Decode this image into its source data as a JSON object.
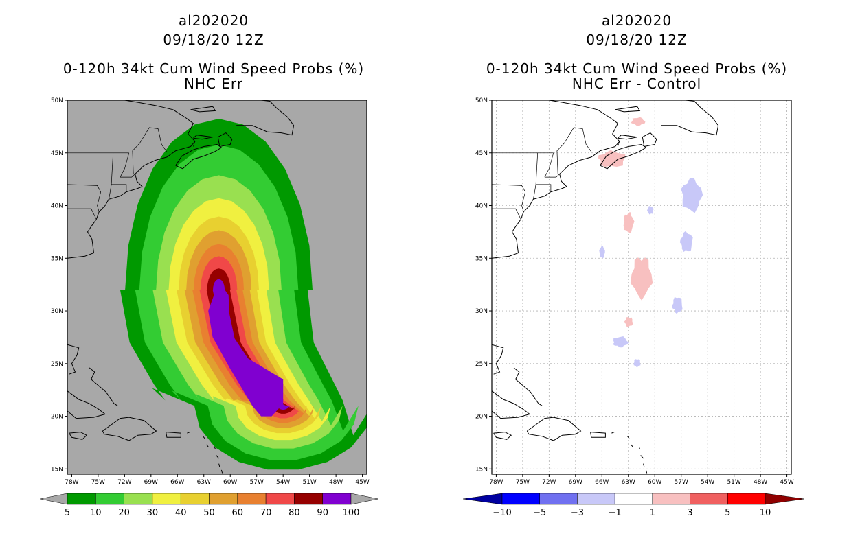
{
  "chart_data": [
    {
      "type": "heatmap",
      "panel": "left",
      "title_lines": [
        "al202020",
        "09/18/20 12Z",
        "0-120h 34kt Cum Wind Speed Probs (%)",
        "NHC Err"
      ],
      "lon_range": [
        -78.5,
        -44.5
      ],
      "lat_range": [
        14.5,
        50
      ],
      "x_ticks": [
        "78W",
        "75W",
        "72W",
        "69W",
        "66W",
        "63W",
        "60W",
        "57W",
        "54W",
        "51W",
        "48W",
        "45W"
      ],
      "x_tick_values": [
        -78,
        -75,
        -72,
        -69,
        -66,
        -63,
        -60,
        -57,
        -54,
        -51,
        -48,
        -45
      ],
      "y_ticks": [
        "15N",
        "20N",
        "25N",
        "30N",
        "35N",
        "40N",
        "45N",
        "50N"
      ],
      "y_tick_values": [
        15,
        20,
        25,
        30,
        35,
        40,
        45,
        50
      ],
      "grid": false,
      "background": "#a8a8a8",
      "levels": [
        5,
        10,
        20,
        30,
        40,
        50,
        60,
        70,
        80,
        90,
        100
      ],
      "level_labels": [
        "5",
        "10",
        "20",
        "30",
        "40",
        "50",
        "60",
        "70",
        "80",
        "90",
        "100"
      ],
      "colors": [
        "#009900",
        "#33cc33",
        "#99e050",
        "#f0f040",
        "#e8d030",
        "#e0a030",
        "#e88030",
        "#f04848",
        "#960000",
        "#8000d0"
      ],
      "track": {
        "points": [
          [
            -61.3,
            32
          ],
          [
            -60,
            27
          ],
          [
            -57,
            23
          ],
          [
            -55.5,
            21.5
          ],
          [
            -54,
            21
          ]
        ],
        "prob_by_level": [
          {
            "level": 5,
            "half_width": 11.2
          },
          {
            "level": 10,
            "half_width": 9.5
          },
          {
            "level": 20,
            "half_width": 7.5
          },
          {
            "level": 30,
            "half_width": 6
          },
          {
            "level": 40,
            "half_width": 4.8
          },
          {
            "level": 50,
            "half_width": 3.9
          },
          {
            "level": 60,
            "half_width": 3
          },
          {
            "level": 70,
            "half_width": 2.2
          },
          {
            "level": 80,
            "half_width": 1.4
          },
          {
            "level": 90,
            "half_width": 0.7
          }
        ]
      }
    },
    {
      "type": "heatmap",
      "panel": "right",
      "title_lines": [
        "al202020",
        "09/18/20 12Z",
        "0-120h 34kt Cum Wind Speed Probs (%)",
        "NHC Err - Control"
      ],
      "lon_range": [
        -78.5,
        -44.5
      ],
      "lat_range": [
        14.5,
        50
      ],
      "x_ticks": [
        "78W",
        "75W",
        "72W",
        "69W",
        "66W",
        "63W",
        "60W",
        "57W",
        "54W",
        "51W",
        "48W",
        "45W"
      ],
      "x_tick_values": [
        -78,
        -75,
        -72,
        -69,
        -66,
        -63,
        -60,
        -57,
        -54,
        -51,
        -48,
        -45
      ],
      "y_ticks": [
        "15N",
        "20N",
        "25N",
        "30N",
        "35N",
        "40N",
        "45N",
        "50N"
      ],
      "y_tick_values": [
        15,
        20,
        25,
        30,
        35,
        40,
        45,
        50
      ],
      "grid": true,
      "background": "#ffffff",
      "levels": [
        -10,
        -5,
        -3,
        -1,
        1,
        3,
        5,
        10
      ],
      "level_labels": [
        "-10",
        "-5",
        "-3",
        "-1",
        "1",
        "3",
        "5",
        "10"
      ],
      "colors": [
        "#0000a0",
        "#0000ff",
        "#7070f0",
        "#c8c8f8",
        "#ffffff",
        "#f8c0c0",
        "#f06060",
        "#ff0000",
        "#900000"
      ],
      "patches": [
        {
          "sign": "positive",
          "value": 2,
          "center": [
            -61.5,
            33.5
          ],
          "size": [
            3.0,
            5.0
          ]
        },
        {
          "sign": "positive",
          "value": 2,
          "center": [
            -63.0,
            38.5
          ],
          "size": [
            1.5,
            2.5
          ]
        },
        {
          "sign": "positive",
          "value": 2,
          "center": [
            -65.0,
            44.5
          ],
          "size": [
            4.0,
            2.0
          ]
        },
        {
          "sign": "positive",
          "value": 2,
          "center": [
            -63.0,
            29.0
          ],
          "size": [
            1.2,
            1.2
          ]
        },
        {
          "sign": "positive",
          "value": 2,
          "center": [
            -62.0,
            48.0
          ],
          "size": [
            2.0,
            1.0
          ]
        },
        {
          "sign": "negative",
          "value": -2,
          "center": [
            -56.0,
            41.0
          ],
          "size": [
            3.0,
            4.0
          ]
        },
        {
          "sign": "negative",
          "value": -2,
          "center": [
            -56.5,
            36.5
          ],
          "size": [
            1.8,
            2.5
          ]
        },
        {
          "sign": "negative",
          "value": -2,
          "center": [
            -57.5,
            30.5
          ],
          "size": [
            1.5,
            2.0
          ]
        },
        {
          "sign": "negative",
          "value": -2,
          "center": [
            -64.0,
            27.0
          ],
          "size": [
            2.2,
            1.3
          ]
        },
        {
          "sign": "negative",
          "value": -2,
          "center": [
            -66.0,
            35.5
          ],
          "size": [
            0.8,
            1.5
          ]
        },
        {
          "sign": "negative",
          "value": -2,
          "center": [
            -60.5,
            39.5
          ],
          "size": [
            0.9,
            1.0
          ]
        },
        {
          "sign": "negative",
          "value": -2,
          "center": [
            -62.0,
            25.0
          ],
          "size": [
            1.0,
            1.0
          ]
        }
      ]
    }
  ]
}
